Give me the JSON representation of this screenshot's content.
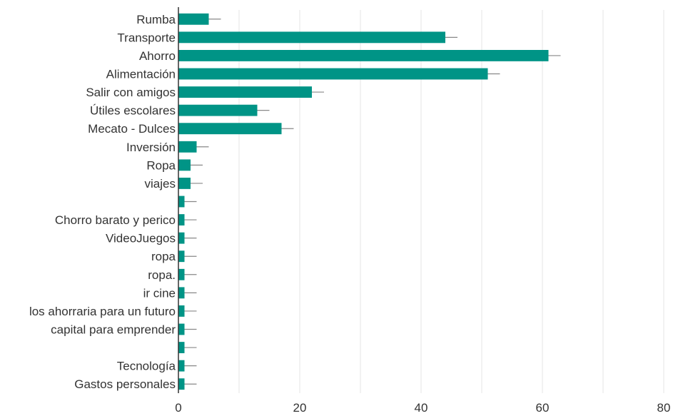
{
  "chart_data": {
    "type": "bar",
    "orientation": "horizontal",
    "categories": [
      "Rumba",
      "Transporte",
      "Ahorro",
      "Alimentación",
      "Salir con amigos",
      "Útiles escolares",
      "Mecato - Dulces",
      "Inversión",
      "Ropa",
      "viajes",
      "",
      "Chorro barato y perico",
      "VideoJuegos",
      "ropa",
      "ropa.",
      "ir cine",
      "los ahorraria para un futuro",
      "capital para emprender",
      "",
      "Tecnología",
      "Gastos personales"
    ],
    "values": [
      5,
      44,
      61,
      51,
      22,
      13,
      17,
      3,
      2,
      2,
      1,
      1,
      1,
      1,
      1,
      1,
      1,
      1,
      1,
      1,
      1
    ],
    "error_bar": 2,
    "xlim": [
      0,
      80
    ],
    "xticks": [
      0,
      20,
      40,
      60,
      80
    ],
    "grid": "vertical",
    "title": "",
    "xlabel": "",
    "ylabel": "",
    "colors": {
      "bar": "#009486",
      "error": "#888888",
      "grid": "#e5e5e5",
      "axis": "#333333"
    }
  }
}
